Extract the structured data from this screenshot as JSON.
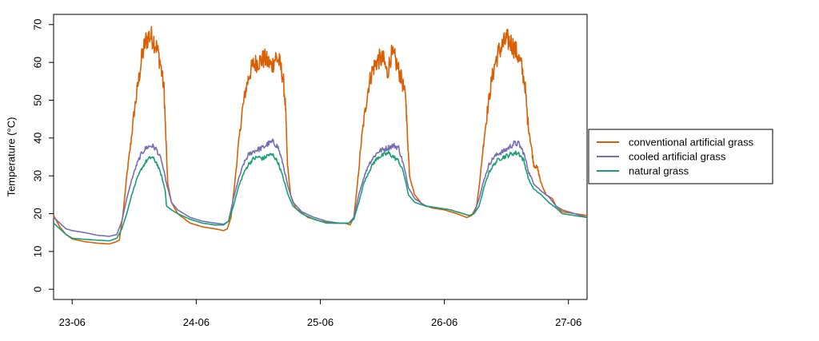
{
  "chart_data": {
    "type": "line",
    "title": "",
    "xlabel": "",
    "ylabel": "Temperature (°C)",
    "ylim": [
      0,
      70
    ],
    "yticks": [
      0,
      10,
      20,
      30,
      40,
      50,
      60,
      70
    ],
    "xlim": [
      -0.15,
      4.15
    ],
    "xticks": [
      {
        "value": 0,
        "label": "23-06"
      },
      {
        "value": 1,
        "label": "24-06"
      },
      {
        "value": 2,
        "label": "25-06"
      },
      {
        "value": 3,
        "label": "26-06"
      },
      {
        "value": 4,
        "label": "27-06"
      }
    ],
    "grid": false,
    "legend": {
      "position": "right"
    },
    "x_unit": "days from 23-06 00:00",
    "series": [
      {
        "name": "conventional artificial grass",
        "color": "#D95F02",
        "points": [
          [
            -0.15,
            19.5
          ],
          [
            -0.1,
            16.5
          ],
          [
            -0.05,
            14.5
          ],
          [
            0.0,
            13.3
          ],
          [
            0.1,
            12.6
          ],
          [
            0.2,
            12.2
          ],
          [
            0.3,
            12.0
          ],
          [
            0.35,
            12.5
          ],
          [
            0.38,
            13.0
          ],
          [
            0.41,
            20.0
          ],
          [
            0.44,
            30.0
          ],
          [
            0.47,
            38.0
          ],
          [
            0.5,
            47.0
          ],
          [
            0.53,
            54.0
          ],
          [
            0.56,
            61.0
          ],
          [
            0.59,
            65.5
          ],
          [
            0.62,
            67.0
          ],
          [
            0.65,
            66.5
          ],
          [
            0.68,
            64.0
          ],
          [
            0.71,
            60.0
          ],
          [
            0.74,
            53.0
          ],
          [
            0.755,
            40.0
          ],
          [
            0.77,
            28.0
          ],
          [
            0.8,
            23.0
          ],
          [
            0.85,
            20.0
          ],
          [
            0.95,
            17.5
          ],
          [
            1.05,
            16.5
          ],
          [
            1.15,
            16.0
          ],
          [
            1.22,
            15.5
          ],
          [
            1.25,
            16.0
          ],
          [
            1.28,
            19.0
          ],
          [
            1.31,
            28.0
          ],
          [
            1.34,
            38.0
          ],
          [
            1.37,
            47.0
          ],
          [
            1.4,
            53.0
          ],
          [
            1.43,
            57.0
          ],
          [
            1.46,
            59.5
          ],
          [
            1.49,
            60.0
          ],
          [
            1.52,
            60.5
          ],
          [
            1.55,
            61.0
          ],
          [
            1.58,
            60.0
          ],
          [
            1.61,
            59.0
          ],
          [
            1.64,
            61.5
          ],
          [
            1.67,
            60.0
          ],
          [
            1.7,
            56.0
          ],
          [
            1.72,
            48.0
          ],
          [
            1.735,
            33.0
          ],
          [
            1.76,
            25.0
          ],
          [
            1.8,
            21.5
          ],
          [
            1.9,
            19.0
          ],
          [
            2.0,
            18.0
          ],
          [
            2.1,
            17.5
          ],
          [
            2.2,
            17.5
          ],
          [
            2.24,
            17.0
          ],
          [
            2.27,
            19.0
          ],
          [
            2.3,
            28.0
          ],
          [
            2.33,
            39.0
          ],
          [
            2.36,
            47.0
          ],
          [
            2.39,
            54.0
          ],
          [
            2.42,
            58.0
          ],
          [
            2.45,
            60.0
          ],
          [
            2.48,
            61.0
          ],
          [
            2.51,
            60.5
          ],
          [
            2.54,
            57.0
          ],
          [
            2.57,
            62.0
          ],
          [
            2.6,
            61.0
          ],
          [
            2.63,
            58.0
          ],
          [
            2.66,
            55.0
          ],
          [
            2.69,
            50.0
          ],
          [
            2.7,
            42.0
          ],
          [
            2.72,
            30.0
          ],
          [
            2.76,
            25.0
          ],
          [
            2.82,
            22.5
          ],
          [
            2.9,
            21.5
          ],
          [
            3.0,
            21.0
          ],
          [
            3.1,
            20.0
          ],
          [
            3.18,
            19.0
          ],
          [
            3.22,
            19.5
          ],
          [
            3.26,
            22.0
          ],
          [
            3.29,
            30.0
          ],
          [
            3.32,
            40.0
          ],
          [
            3.35,
            48.0
          ],
          [
            3.38,
            55.0
          ],
          [
            3.41,
            60.0
          ],
          [
            3.44,
            63.0
          ],
          [
            3.47,
            64.5
          ],
          [
            3.5,
            66.0
          ],
          [
            3.53,
            65.5
          ],
          [
            3.56,
            64.0
          ],
          [
            3.59,
            62.0
          ],
          [
            3.62,
            59.0
          ],
          [
            3.65,
            54.0
          ],
          [
            3.67,
            45.0
          ],
          [
            3.7,
            38.0
          ],
          [
            3.72,
            33.0
          ],
          [
            3.75,
            32.0
          ],
          [
            3.78,
            28.0
          ],
          [
            3.82,
            25.0
          ],
          [
            3.87,
            24.0
          ],
          [
            3.9,
            22.0
          ],
          [
            3.95,
            20.5
          ],
          [
            4.05,
            20.0
          ],
          [
            4.15,
            19.5
          ]
        ]
      },
      {
        "name": "cooled artificial grass",
        "color": "#7570B3",
        "points": [
          [
            -0.15,
            19.0
          ],
          [
            -0.1,
            17.5
          ],
          [
            -0.05,
            16.0
          ],
          [
            0.0,
            15.5
          ],
          [
            0.1,
            15.0
          ],
          [
            0.2,
            14.3
          ],
          [
            0.3,
            14.0
          ],
          [
            0.36,
            14.5
          ],
          [
            0.4,
            18.0
          ],
          [
            0.44,
            24.0
          ],
          [
            0.48,
            29.0
          ],
          [
            0.52,
            33.0
          ],
          [
            0.56,
            36.0
          ],
          [
            0.6,
            37.5
          ],
          [
            0.64,
            38.0
          ],
          [
            0.68,
            37.0
          ],
          [
            0.72,
            34.0
          ],
          [
            0.76,
            28.0
          ],
          [
            0.8,
            23.0
          ],
          [
            0.85,
            21.0
          ],
          [
            0.95,
            19.0
          ],
          [
            1.05,
            18.0
          ],
          [
            1.15,
            17.5
          ],
          [
            1.22,
            17.2
          ],
          [
            1.26,
            18.0
          ],
          [
            1.3,
            24.0
          ],
          [
            1.34,
            29.0
          ],
          [
            1.38,
            33.0
          ],
          [
            1.42,
            35.5
          ],
          [
            1.46,
            36.5
          ],
          [
            1.5,
            37.0
          ],
          [
            1.54,
            37.5
          ],
          [
            1.58,
            38.5
          ],
          [
            1.62,
            39.0
          ],
          [
            1.66,
            37.5
          ],
          [
            1.7,
            33.0
          ],
          [
            1.74,
            27.0
          ],
          [
            1.78,
            23.0
          ],
          [
            1.85,
            20.5
          ],
          [
            1.95,
            19.0
          ],
          [
            2.05,
            18.0
          ],
          [
            2.15,
            17.5
          ],
          [
            2.23,
            17.5
          ],
          [
            2.27,
            19.0
          ],
          [
            2.31,
            25.0
          ],
          [
            2.35,
            29.5
          ],
          [
            2.39,
            33.0
          ],
          [
            2.43,
            35.0
          ],
          [
            2.47,
            36.5
          ],
          [
            2.51,
            37.0
          ],
          [
            2.55,
            37.5
          ],
          [
            2.59,
            38.0
          ],
          [
            2.63,
            37.5
          ],
          [
            2.67,
            33.0
          ],
          [
            2.71,
            27.0
          ],
          [
            2.76,
            24.0
          ],
          [
            2.85,
            22.0
          ],
          [
            2.95,
            21.5
          ],
          [
            3.05,
            21.0
          ],
          [
            3.15,
            20.0
          ],
          [
            3.2,
            19.5
          ],
          [
            3.24,
            20.0
          ],
          [
            3.28,
            24.0
          ],
          [
            3.32,
            29.0
          ],
          [
            3.36,
            33.0
          ],
          [
            3.4,
            35.0
          ],
          [
            3.44,
            36.0
          ],
          [
            3.48,
            36.5
          ],
          [
            3.52,
            37.5
          ],
          [
            3.56,
            38.5
          ],
          [
            3.6,
            38.5
          ],
          [
            3.64,
            36.0
          ],
          [
            3.68,
            31.0
          ],
          [
            3.72,
            28.0
          ],
          [
            3.78,
            26.0
          ],
          [
            3.84,
            24.5
          ],
          [
            3.9,
            22.0
          ],
          [
            3.95,
            21.0
          ],
          [
            4.05,
            20.0
          ],
          [
            4.15,
            19.0
          ]
        ]
      },
      {
        "name": "natural grass",
        "color": "#1B9E77",
        "points": [
          [
            -0.15,
            17.5
          ],
          [
            -0.1,
            16.0
          ],
          [
            -0.05,
            14.5
          ],
          [
            0.0,
            13.5
          ],
          [
            0.1,
            13.2
          ],
          [
            0.2,
            13.0
          ],
          [
            0.3,
            12.8
          ],
          [
            0.36,
            13.5
          ],
          [
            0.4,
            16.0
          ],
          [
            0.44,
            20.0
          ],
          [
            0.48,
            25.0
          ],
          [
            0.52,
            29.0
          ],
          [
            0.56,
            32.0
          ],
          [
            0.6,
            34.0
          ],
          [
            0.64,
            35.0
          ],
          [
            0.68,
            33.5
          ],
          [
            0.72,
            30.0
          ],
          [
            0.75,
            26.0
          ],
          [
            0.76,
            22.0
          ],
          [
            0.8,
            21.0
          ],
          [
            0.85,
            20.0
          ],
          [
            0.95,
            18.5
          ],
          [
            1.05,
            17.5
          ],
          [
            1.15,
            17.0
          ],
          [
            1.22,
            17.0
          ],
          [
            1.26,
            18.0
          ],
          [
            1.3,
            22.0
          ],
          [
            1.34,
            27.0
          ],
          [
            1.38,
            30.5
          ],
          [
            1.42,
            33.0
          ],
          [
            1.46,
            34.5
          ],
          [
            1.5,
            35.0
          ],
          [
            1.54,
            34.5
          ],
          [
            1.58,
            35.5
          ],
          [
            1.62,
            35.5
          ],
          [
            1.66,
            33.5
          ],
          [
            1.7,
            29.5
          ],
          [
            1.74,
            25.0
          ],
          [
            1.78,
            22.0
          ],
          [
            1.85,
            20.0
          ],
          [
            1.95,
            18.5
          ],
          [
            2.05,
            17.5
          ],
          [
            2.15,
            17.5
          ],
          [
            2.23,
            17.5
          ],
          [
            2.27,
            18.5
          ],
          [
            2.31,
            23.0
          ],
          [
            2.35,
            28.0
          ],
          [
            2.39,
            31.0
          ],
          [
            2.43,
            33.5
          ],
          [
            2.47,
            35.0
          ],
          [
            2.51,
            35.5
          ],
          [
            2.55,
            36.0
          ],
          [
            2.59,
            35.0
          ],
          [
            2.63,
            34.0
          ],
          [
            2.67,
            31.0
          ],
          [
            2.71,
            25.0
          ],
          [
            2.76,
            23.0
          ],
          [
            2.85,
            22.0
          ],
          [
            2.95,
            21.5
          ],
          [
            3.05,
            21.0
          ],
          [
            3.15,
            20.0
          ],
          [
            3.2,
            19.5
          ],
          [
            3.24,
            20.0
          ],
          [
            3.28,
            22.0
          ],
          [
            3.32,
            27.0
          ],
          [
            3.36,
            31.0
          ],
          [
            3.4,
            33.0
          ],
          [
            3.44,
            34.5
          ],
          [
            3.48,
            35.0
          ],
          [
            3.52,
            35.5
          ],
          [
            3.56,
            36.0
          ],
          [
            3.6,
            36.0
          ],
          [
            3.64,
            34.0
          ],
          [
            3.68,
            29.0
          ],
          [
            3.72,
            26.5
          ],
          [
            3.78,
            25.0
          ],
          [
            3.84,
            23.0
          ],
          [
            3.9,
            21.5
          ],
          [
            3.95,
            20.0
          ],
          [
            4.05,
            19.5
          ],
          [
            4.15,
            19.0
          ]
        ]
      }
    ]
  }
}
